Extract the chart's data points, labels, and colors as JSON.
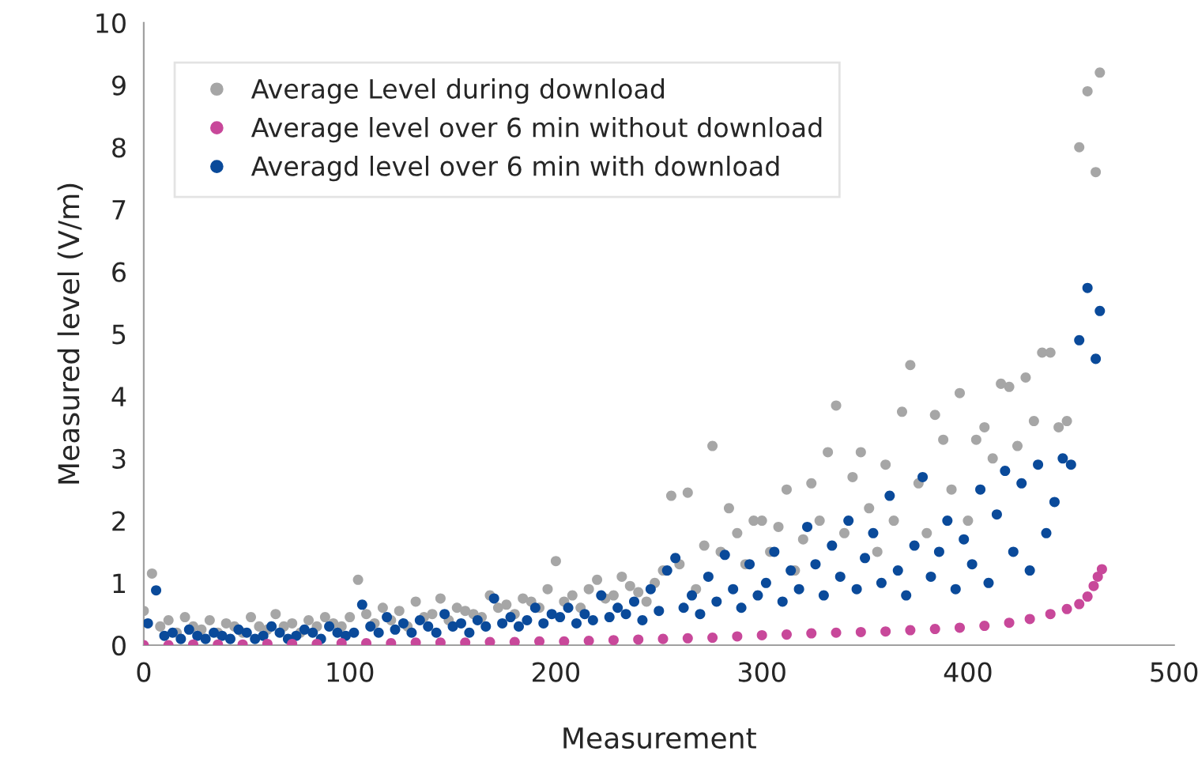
{
  "chart_data": {
    "type": "scatter",
    "xlabel": "Measurement",
    "ylabel": "Measured level (V/m)",
    "xlim": [
      0,
      500
    ],
    "xticks": [
      0,
      100,
      200,
      300,
      400,
      500
    ],
    "ylim": [
      0,
      10
    ],
    "yticks": [
      0,
      1,
      2,
      3,
      4,
      5,
      6,
      7,
      8,
      9,
      10
    ],
    "grid": false,
    "legend": "top left",
    "marker": "circle",
    "series": [
      {
        "name": "Average Level during download",
        "color": "#a6a6a6",
        "x": [
          0,
          4,
          8,
          12,
          16,
          20,
          24,
          28,
          32,
          36,
          40,
          44,
          48,
          52,
          56,
          60,
          64,
          68,
          72,
          76,
          80,
          84,
          88,
          92,
          96,
          100,
          104,
          108,
          112,
          116,
          120,
          124,
          128,
          132,
          136,
          140,
          144,
          148,
          152,
          156,
          160,
          164,
          168,
          172,
          176,
          180,
          184,
          188,
          192,
          196,
          200,
          204,
          208,
          212,
          216,
          220,
          224,
          228,
          232,
          236,
          240,
          244,
          248,
          252,
          256,
          260,
          264,
          268,
          272,
          276,
          280,
          284,
          288,
          292,
          296,
          300,
          304,
          308,
          312,
          316,
          320,
          324,
          328,
          332,
          336,
          340,
          344,
          348,
          352,
          356,
          360,
          364,
          368,
          372,
          376,
          380,
          384,
          388,
          392,
          396,
          400,
          404,
          408,
          412,
          416,
          420,
          424,
          428,
          432,
          436,
          440,
          444,
          448,
          454,
          458,
          462,
          464
        ],
        "values": [
          0.55,
          1.15,
          0.3,
          0.4,
          0.2,
          0.45,
          0.3,
          0.25,
          0.4,
          0.2,
          0.35,
          0.3,
          0.2,
          0.45,
          0.3,
          0.25,
          0.5,
          0.3,
          0.35,
          0.2,
          0.4,
          0.3,
          0.45,
          0.35,
          0.3,
          0.45,
          1.05,
          0.5,
          0.35,
          0.6,
          0.4,
          0.55,
          0.3,
          0.7,
          0.45,
          0.5,
          0.75,
          0.4,
          0.6,
          0.55,
          0.5,
          0.45,
          0.8,
          0.6,
          0.65,
          0.5,
          0.75,
          0.7,
          0.6,
          0.9,
          1.35,
          0.7,
          0.8,
          0.6,
          0.9,
          1.05,
          0.75,
          0.8,
          1.1,
          0.95,
          0.85,
          0.7,
          1.0,
          1.2,
          2.4,
          1.3,
          2.45,
          0.9,
          1.6,
          3.2,
          1.5,
          2.2,
          1.8,
          1.3,
          2.0,
          2.0,
          1.5,
          1.9,
          2.5,
          1.2,
          1.7,
          2.6,
          2.0,
          3.1,
          3.85,
          1.8,
          2.7,
          3.1,
          2.2,
          1.5,
          2.9,
          2.0,
          3.75,
          4.5,
          2.6,
          1.8,
          3.7,
          3.3,
          2.5,
          4.05,
          2.0,
          3.3,
          3.5,
          3.0,
          4.2,
          4.15,
          3.2,
          4.3,
          3.6,
          4.7,
          4.7,
          3.5,
          3.6,
          8.0,
          8.9,
          7.6,
          9.2
        ]
      },
      {
        "name": "Averagd level over 6 min with download",
        "color": "#0a4a9a",
        "x": [
          2,
          6,
          10,
          14,
          18,
          22,
          26,
          30,
          34,
          38,
          42,
          46,
          50,
          54,
          58,
          62,
          66,
          70,
          74,
          78,
          82,
          86,
          90,
          94,
          98,
          102,
          106,
          110,
          114,
          118,
          122,
          126,
          130,
          134,
          138,
          142,
          146,
          150,
          154,
          158,
          162,
          166,
          170,
          174,
          178,
          182,
          186,
          190,
          194,
          198,
          202,
          206,
          210,
          214,
          218,
          222,
          226,
          230,
          234,
          238,
          242,
          246,
          250,
          254,
          258,
          262,
          266,
          270,
          274,
          278,
          282,
          286,
          290,
          294,
          298,
          302,
          306,
          310,
          314,
          318,
          322,
          326,
          330,
          334,
          338,
          342,
          346,
          350,
          354,
          358,
          362,
          366,
          370,
          374,
          378,
          382,
          386,
          390,
          394,
          398,
          402,
          406,
          410,
          414,
          418,
          422,
          426,
          430,
          434,
          438,
          442,
          446,
          450,
          454,
          458,
          462,
          464
        ],
        "values": [
          0.35,
          0.88,
          0.15,
          0.2,
          0.1,
          0.25,
          0.15,
          0.1,
          0.2,
          0.15,
          0.1,
          0.25,
          0.2,
          0.1,
          0.15,
          0.3,
          0.2,
          0.1,
          0.15,
          0.25,
          0.2,
          0.1,
          0.3,
          0.2,
          0.15,
          0.2,
          0.65,
          0.3,
          0.2,
          0.45,
          0.25,
          0.35,
          0.2,
          0.4,
          0.3,
          0.2,
          0.5,
          0.3,
          0.35,
          0.2,
          0.4,
          0.3,
          0.75,
          0.35,
          0.45,
          0.3,
          0.4,
          0.6,
          0.35,
          0.5,
          0.45,
          0.6,
          0.35,
          0.5,
          0.4,
          0.8,
          0.45,
          0.6,
          0.5,
          0.7,
          0.4,
          0.9,
          0.55,
          1.2,
          1.4,
          0.6,
          0.8,
          0.5,
          1.1,
          0.7,
          1.45,
          0.9,
          0.6,
          1.3,
          0.8,
          1.0,
          1.5,
          0.7,
          1.2,
          0.9,
          1.9,
          1.3,
          0.8,
          1.6,
          1.1,
          2.0,
          0.9,
          1.4,
          1.8,
          1.0,
          2.4,
          1.2,
          0.8,
          1.6,
          2.7,
          1.1,
          1.5,
          2.0,
          0.9,
          1.7,
          1.3,
          2.5,
          1.0,
          2.1,
          2.8,
          1.5,
          2.6,
          1.2,
          2.9,
          1.8,
          2.3,
          3.0,
          2.9,
          4.9,
          5.74,
          4.6,
          5.37
        ]
      },
      {
        "name": "Average level over 6 min without download",
        "color": "#c8489a",
        "x": [
          0,
          12,
          24,
          36,
          48,
          60,
          72,
          84,
          96,
          108,
          120,
          132,
          144,
          156,
          168,
          180,
          192,
          204,
          216,
          228,
          240,
          252,
          264,
          276,
          288,
          300,
          312,
          324,
          336,
          348,
          360,
          372,
          384,
          396,
          408,
          420,
          430,
          440,
          448,
          454,
          458,
          461,
          463,
          465
        ],
        "values": [
          0.0,
          0.0,
          0.01,
          0.01,
          0.01,
          0.02,
          0.02,
          0.02,
          0.03,
          0.03,
          0.03,
          0.04,
          0.04,
          0.04,
          0.05,
          0.05,
          0.06,
          0.06,
          0.07,
          0.08,
          0.09,
          0.1,
          0.11,
          0.12,
          0.14,
          0.16,
          0.17,
          0.19,
          0.2,
          0.21,
          0.22,
          0.24,
          0.26,
          0.28,
          0.31,
          0.36,
          0.42,
          0.5,
          0.58,
          0.66,
          0.78,
          0.95,
          1.1,
          1.22
        ]
      }
    ]
  }
}
